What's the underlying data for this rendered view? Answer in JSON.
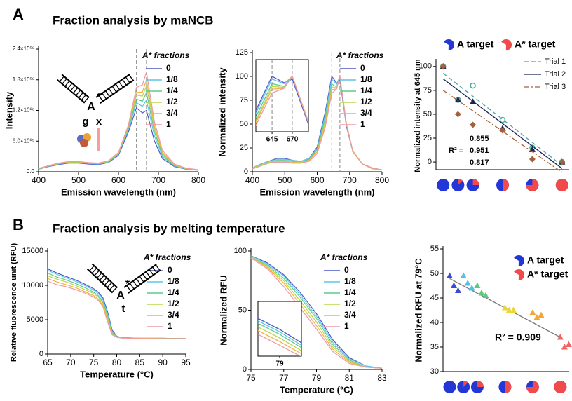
{
  "panels": [
    {
      "label": "A",
      "title": "Fraction analysis by maNCB"
    },
    {
      "label": "B",
      "title": "Fraction analysis by melting temperature"
    }
  ],
  "chart_data": [
    {
      "type": "line",
      "x_label": "Emission wavelength (nm)",
      "y_label": "Intensity",
      "xlim": [
        400,
        800
      ],
      "ylim": [
        0,
        2400000
      ],
      "xticks": [
        400,
        500,
        600,
        700,
        800
      ],
      "yticks": [
        {
          "value": 0,
          "label": "0.0"
        },
        {
          "value": 600000,
          "label": "6.0×10⁰⁵"
        },
        {
          "value": 1200000,
          "label": "1.2×10⁰⁶"
        },
        {
          "value": 1800000,
          "label": "1.8×10⁰⁶"
        },
        {
          "value": 2400000,
          "label": "2.4×10⁰⁶"
        }
      ],
      "reference_lines": [
        645,
        670
      ],
      "legend_title": "A* fractions",
      "diagram_labels": [
        "A",
        "*",
        "g",
        "x"
      ],
      "x": [
        400,
        425,
        450,
        475,
        500,
        525,
        550,
        575,
        600,
        625,
        645,
        660,
        670,
        690,
        710,
        740,
        770,
        800
      ],
      "series": [
        {
          "name": "0",
          "color": "#4b57c8",
          "values": [
            50000,
            100000,
            140000,
            170000,
            170000,
            150000,
            140000,
            180000,
            320000,
            780000,
            1250000,
            1150000,
            1200000,
            600000,
            260000,
            100000,
            50000,
            30000
          ]
        },
        {
          "name": "1/8",
          "color": "#5cc6e8",
          "values": [
            55000,
            105000,
            150000,
            180000,
            180000,
            160000,
            150000,
            190000,
            340000,
            830000,
            1350000,
            1280000,
            1400000,
            700000,
            300000,
            110000,
            55000,
            30000
          ]
        },
        {
          "name": "1/4",
          "color": "#5fc98a",
          "values": [
            55000,
            110000,
            155000,
            185000,
            185000,
            165000,
            155000,
            200000,
            350000,
            860000,
            1420000,
            1380000,
            1550000,
            780000,
            330000,
            120000,
            60000,
            35000
          ]
        },
        {
          "name": "1/2",
          "color": "#b5d84a",
          "values": [
            60000,
            115000,
            160000,
            190000,
            190000,
            170000,
            160000,
            205000,
            360000,
            880000,
            1500000,
            1480000,
            1680000,
            850000,
            360000,
            130000,
            60000,
            35000
          ]
        },
        {
          "name": "3/4",
          "color": "#f2b243",
          "values": [
            60000,
            115000,
            160000,
            195000,
            195000,
            175000,
            165000,
            210000,
            370000,
            900000,
            1550000,
            1560000,
            1800000,
            900000,
            380000,
            135000,
            65000,
            35000
          ]
        },
        {
          "name": "1",
          "color": "#ee9aa5",
          "values": [
            65000,
            120000,
            170000,
            200000,
            200000,
            180000,
            170000,
            215000,
            380000,
            920000,
            1650000,
            1700000,
            1950000,
            980000,
            420000,
            150000,
            70000,
            40000
          ]
        }
      ]
    },
    {
      "type": "line",
      "x_label": "Emission wavelength (nm)",
      "y_label": "Normalized intensity",
      "xlim": [
        400,
        800
      ],
      "ylim": [
        0,
        125
      ],
      "xticks": [
        400,
        500,
        600,
        700,
        800
      ],
      "yticks": [
        0,
        25,
        50,
        75,
        100,
        125
      ],
      "reference_lines": [
        645,
        670
      ],
      "legend_title": "A* fractions",
      "inset": {
        "xlim": [
          625,
          690
        ],
        "ylim": [
          40,
          118
        ],
        "xticks": [
          645,
          670
        ]
      },
      "x": [
        400,
        425,
        450,
        475,
        500,
        525,
        550,
        575,
        600,
        625,
        645,
        660,
        670,
        690,
        710,
        740,
        770,
        800
      ],
      "series": [
        {
          "name": "0",
          "color": "#4b57c8",
          "values": [
            4,
            8,
            11,
            14,
            14,
            12,
            11,
            14,
            26,
            63,
            100,
            93,
            97,
            48,
            21,
            8,
            4,
            2
          ]
        },
        {
          "name": "1/8",
          "color": "#5cc6e8",
          "values": [
            4,
            8,
            11,
            13,
            13,
            12,
            11,
            14,
            24,
            60,
            97,
            92,
            100,
            50,
            21,
            8,
            4,
            2
          ]
        },
        {
          "name": "1/4",
          "color": "#5fc98a",
          "values": [
            4,
            7,
            10,
            12,
            12,
            11,
            10,
            13,
            23,
            56,
            92,
            89,
            100,
            50,
            21,
            8,
            4,
            2
          ]
        },
        {
          "name": "1/2",
          "color": "#b5d84a",
          "values": [
            4,
            7,
            10,
            11,
            11,
            10,
            10,
            12,
            21,
            52,
            89,
            88,
            100,
            51,
            21,
            8,
            4,
            2
          ]
        },
        {
          "name": "3/4",
          "color": "#f2b243",
          "values": [
            3,
            6,
            9,
            11,
            11,
            10,
            9,
            12,
            21,
            50,
            86,
            87,
            100,
            50,
            21,
            8,
            3,
            2
          ]
        },
        {
          "name": "1",
          "color": "#ee9aa5",
          "values": [
            3,
            6,
            9,
            10,
            10,
            9,
            9,
            11,
            19,
            47,
            82,
            87,
            100,
            50,
            22,
            8,
            4,
            2
          ]
        }
      ]
    },
    {
      "type": "scatter",
      "y_label": "Normalized intensity at 645 nm",
      "xlim": [
        -0.06,
        1.06
      ],
      "ylim": [
        -8,
        105
      ],
      "yticks": [
        0,
        25,
        50,
        75,
        100
      ],
      "xticks": [
        0,
        0.125,
        0.25,
        0.5,
        0.75,
        1
      ],
      "target_labels": [
        "A target",
        "A* target"
      ],
      "target_colors": [
        "#2336d6",
        "#f04a4a"
      ],
      "r2_prefix": "R² =",
      "x": [
        0,
        0.125,
        0.25,
        0.5,
        0.75,
        1
      ],
      "series": [
        {
          "name": "Trial 1",
          "color": "#4aa89a",
          "marker": "circle-open",
          "line_style": "dashed",
          "r2": "0.855",
          "values": [
            100,
            65,
            80,
            44,
            15,
            0
          ]
        },
        {
          "name": "Trial 2",
          "color": "#1b2253",
          "marker": "triangle",
          "line_style": "solid",
          "r2": "0.951",
          "values": [
            100,
            65,
            63,
            35,
            13,
            0
          ]
        },
        {
          "name": "Trial 3",
          "color": "#a5613a",
          "marker": "diamond",
          "line_style": "dashdot",
          "r2": "0.817",
          "values": [
            100,
            50,
            39,
            33,
            3,
            0
          ]
        }
      ]
    },
    {
      "type": "line",
      "x_label": "Temperature  (°C)",
      "y_label": "Relative fluorescence unit (RFU)",
      "xlim": [
        65,
        95
      ],
      "ylim": [
        0,
        15000
      ],
      "xticks": [
        65,
        70,
        75,
        80,
        85,
        90,
        95
      ],
      "yticks": [
        0,
        5000,
        10000,
        15000
      ],
      "legend_title": "A* fractions",
      "diagram_labels": [
        "A",
        "*",
        "t"
      ],
      "x": [
        65,
        67,
        69,
        71,
        73,
        75,
        76,
        77,
        78,
        79,
        80,
        81,
        83,
        85,
        90,
        95
      ],
      "series": [
        {
          "name": "0",
          "color": "#4b57c8",
          "values": [
            12400,
            11800,
            11300,
            10800,
            10200,
            9500,
            9000,
            8200,
            6200,
            3500,
            2600,
            2400,
            2350,
            2300,
            2300,
            2250
          ]
        },
        {
          "name": "1/8",
          "color": "#5cc6e8",
          "values": [
            12200,
            11600,
            11100,
            10600,
            10000,
            9300,
            8800,
            7900,
            5900,
            3300,
            2550,
            2400,
            2350,
            2300,
            2300,
            2250
          ]
        },
        {
          "name": "1/4",
          "color": "#5fc98a",
          "values": [
            11800,
            11200,
            10800,
            10300,
            9700,
            9000,
            8500,
            7600,
            5600,
            3100,
            2500,
            2400,
            2350,
            2300,
            2300,
            2250
          ]
        },
        {
          "name": "1/2",
          "color": "#b5d84a",
          "values": [
            11400,
            10900,
            10500,
            10000,
            9400,
            8800,
            8300,
            7400,
            5300,
            3000,
            2500,
            2350,
            2300,
            2300,
            2250,
            2250
          ]
        },
        {
          "name": "3/4",
          "color": "#f2b243",
          "values": [
            11000,
            10500,
            10100,
            9700,
            9100,
            8500,
            8000,
            7100,
            5000,
            2900,
            2450,
            2350,
            2300,
            2300,
            2250,
            2250
          ]
        },
        {
          "name": "1",
          "color": "#ee9aa5",
          "values": [
            10600,
            10100,
            9800,
            9400,
            8900,
            8300,
            7800,
            6900,
            4700,
            2800,
            2450,
            2350,
            2300,
            2250,
            2250,
            2250
          ]
        }
      ]
    },
    {
      "type": "line",
      "x_label": "Temperature  (°C)",
      "y_label": "Normalized RFU",
      "xlim": [
        75,
        83
      ],
      "ylim": [
        0,
        100
      ],
      "xticks": [
        75,
        77,
        79,
        81,
        83
      ],
      "yticks": [
        0,
        50,
        100
      ],
      "legend_title": "A* fractions",
      "inset": {
        "xlim": [
          78.5,
          79.5
        ],
        "ylim": [
          25,
          70
        ],
        "xticks": [
          79
        ]
      },
      "x": [
        75,
        76,
        77,
        78,
        79,
        80,
        81,
        82,
        83
      ],
      "series": [
        {
          "name": "0",
          "color": "#4b57c8",
          "values": [
            96,
            90,
            80,
            65,
            47,
            25,
            10,
            3,
            1
          ]
        },
        {
          "name": "1/8",
          "color": "#5cc6e8",
          "values": [
            96,
            89,
            79,
            63,
            45,
            23,
            9,
            3,
            1
          ]
        },
        {
          "name": "1/4",
          "color": "#5fc98a",
          "values": [
            95,
            88,
            77,
            61,
            43,
            21,
            8,
            2,
            1
          ]
        },
        {
          "name": "1/2",
          "color": "#b5d84a",
          "values": [
            95,
            87,
            75,
            58,
            40,
            19,
            7,
            2,
            1
          ]
        },
        {
          "name": "3/4",
          "color": "#f2b243",
          "values": [
            95,
            86,
            73,
            55,
            37,
            17,
            6,
            2,
            1
          ]
        },
        {
          "name": "1",
          "color": "#ee9aa5",
          "values": [
            94,
            85,
            70,
            52,
            34,
            15,
            5,
            2,
            1
          ]
        }
      ]
    },
    {
      "type": "scatter",
      "y_label": "Normalized RFU at 79°C",
      "xlim": [
        -0.06,
        1.08
      ],
      "ylim": [
        30,
        55
      ],
      "yticks": [
        30,
        35,
        40,
        45,
        50,
        55
      ],
      "xticks": [
        0,
        0.125,
        0.25,
        0.5,
        0.75,
        1
      ],
      "target_labels": [
        "A target",
        "A* target"
      ],
      "target_colors": [
        "#2336d6",
        "#f04a4a"
      ],
      "annotation": "R² = 0.909",
      "x": [
        0,
        0,
        0,
        0.125,
        0.125,
        0.125,
        0.25,
        0.25,
        0.25,
        0.5,
        0.5,
        0.5,
        0.75,
        0.75,
        0.75,
        1,
        1,
        1
      ],
      "values": [
        49.5,
        47.5,
        46.5,
        49.5,
        48,
        47,
        47.5,
        46,
        45.5,
        43,
        42.5,
        42.5,
        42,
        41,
        41.5,
        37,
        35,
        35.5
      ],
      "point_colors": [
        "#3b48d8",
        "#3b48d8",
        "#3b48d8",
        "#4ec3e6",
        "#4ec3e6",
        "#4ec3e6",
        "#5cc97f",
        "#5cc97f",
        "#5cc97f",
        "#e8d83a",
        "#e8d83a",
        "#e8d83a",
        "#f3a43b",
        "#f3a43b",
        "#f3a43b",
        "#f06464",
        "#f06464",
        "#f06464"
      ]
    }
  ]
}
